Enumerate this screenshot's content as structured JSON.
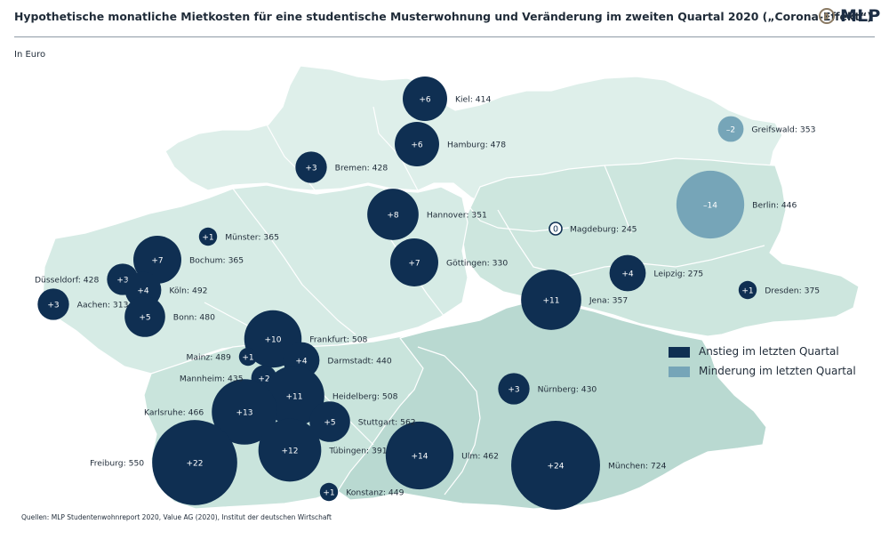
{
  "title": "Hypothetische monatliche Mietkosten für eine studentische Musterwohnung und Veränderung im zweiten Quartal 2020 („Corona-Effekt“)",
  "subtitle": "In Euro",
  "logo_text": "MLP",
  "source": "Quellen: MLP Studentenwohnreport 2020, Value AG (2020), Institut der deutschen Wirtschaft",
  "colors": {
    "increase": "#0f2f52",
    "decrease": "#76a5b8",
    "zero_stroke": "#0f2f52",
    "land_light": "#deefea",
    "land_mid": "#c6e2db",
    "land_south": "#b9d9d1",
    "borders": "#ffffff"
  },
  "legend": {
    "increase_label": "Anstieg im letzten Quartal",
    "decrease_label": "Minderung im letzten Quartal"
  },
  "cities": [
    {
      "name": "Kiel",
      "rent": 414,
      "change": "+6",
      "change_value": 6,
      "label": "Kiel: 414",
      "label_side": "right"
    },
    {
      "name": "Hamburg",
      "rent": 478,
      "change": "+6",
      "change_value": 6,
      "label": "Hamburg: 478",
      "label_side": "right"
    },
    {
      "name": "Greifswald",
      "rent": 353,
      "change": "–2",
      "change_value": -2,
      "label": "Greifswald: 353",
      "label_side": "right"
    },
    {
      "name": "Bremen",
      "rent": 428,
      "change": "+3",
      "change_value": 3,
      "label": "Bremen: 428",
      "label_side": "right"
    },
    {
      "name": "Berlin",
      "rent": 446,
      "change": "–14",
      "change_value": -14,
      "label": "Berlin: 446",
      "label_side": "right"
    },
    {
      "name": "Hannover",
      "rent": 351,
      "change": "+8",
      "change_value": 8,
      "label": "Hannover: 351",
      "label_side": "right"
    },
    {
      "name": "Magdeburg",
      "rent": 245,
      "change": "0",
      "change_value": 0,
      "label": "Magdeburg: 245",
      "label_side": "right"
    },
    {
      "name": "Münster",
      "rent": 365,
      "change": "+1",
      "change_value": 1,
      "label": "Münster: 365",
      "label_side": "right"
    },
    {
      "name": "Bochum",
      "rent": 365,
      "change": "+7",
      "change_value": 7,
      "label": "Bochum: 365",
      "label_side": "right"
    },
    {
      "name": "Göttingen",
      "rent": 330,
      "change": "+7",
      "change_value": 7,
      "label": "Göttingen: 330",
      "label_side": "right"
    },
    {
      "name": "Leipzig",
      "rent": 275,
      "change": "+4",
      "change_value": 4,
      "label": "Leipzig: 275",
      "label_side": "right"
    },
    {
      "name": "Düsseldorf",
      "rent": 428,
      "change": "+3",
      "change_value": 3,
      "label": "Düsseldorf: 428",
      "label_side": "left"
    },
    {
      "name": "Köln",
      "rent": 492,
      "change": "+4",
      "change_value": 4,
      "label": "Köln: 492",
      "label_side": "right"
    },
    {
      "name": "Dresden",
      "rent": 375,
      "change": "+1",
      "change_value": 1,
      "label": "Dresden: 375",
      "label_side": "right"
    },
    {
      "name": "Jena",
      "rent": 357,
      "change": "+11",
      "change_value": 11,
      "label": "Jena: 357",
      "label_side": "right"
    },
    {
      "name": "Aachen",
      "rent": 313,
      "change": "+3",
      "change_value": 3,
      "label": "Aachen: 313",
      "label_side": "right"
    },
    {
      "name": "Bonn",
      "rent": 480,
      "change": "+5",
      "change_value": 5,
      "label": "Bonn: 480",
      "label_side": "right"
    },
    {
      "name": "Frankfurt",
      "rent": 508,
      "change": "+10",
      "change_value": 10,
      "label": "Frankfurt: 508",
      "label_side": "right"
    },
    {
      "name": "Mainz",
      "rent": 489,
      "change": "+1",
      "change_value": 1,
      "label": "Mainz: 489",
      "label_side": "left"
    },
    {
      "name": "Darmstadt",
      "rent": 440,
      "change": "+4",
      "change_value": 4,
      "label": "Darmstadt: 440",
      "label_side": "right"
    },
    {
      "name": "Mannheim",
      "rent": 435,
      "change": "+2",
      "change_value": 2,
      "label": "Mannheim: 435",
      "label_side": "left"
    },
    {
      "name": "Heidelberg",
      "rent": 508,
      "change": "+11",
      "change_value": 11,
      "label": "Heidelberg: 508",
      "label_side": "right"
    },
    {
      "name": "Nürnberg",
      "rent": 430,
      "change": "+3",
      "change_value": 3,
      "label": "Nürnberg: 430",
      "label_side": "right"
    },
    {
      "name": "Karlsruhe",
      "rent": 466,
      "change": "+13",
      "change_value": 13,
      "label": "Karlsruhe: 466",
      "label_side": "left"
    },
    {
      "name": "Stuttgart",
      "rent": 562,
      "change": "+5",
      "change_value": 5,
      "label": "Stuttgart: 562",
      "label_side": "right"
    },
    {
      "name": "Tübingen",
      "rent": 391,
      "change": "+12",
      "change_value": 12,
      "label": "Tübingen: 391",
      "label_side": "right"
    },
    {
      "name": "Ulm",
      "rent": 462,
      "change": "+14",
      "change_value": 14,
      "label": "Ulm: 462",
      "label_side": "right"
    },
    {
      "name": "Freiburg",
      "rent": 550,
      "change": "+22",
      "change_value": 22,
      "label": "Freiburg: 550",
      "label_side": "left"
    },
    {
      "name": "München",
      "rent": 724,
      "change": "+24",
      "change_value": 24,
      "label": "München: 724",
      "label_side": "right"
    },
    {
      "name": "Konstanz",
      "rent": 449,
      "change": "+1",
      "change_value": 1,
      "label": "Konstanz: 449",
      "label_side": "right"
    }
  ]
}
